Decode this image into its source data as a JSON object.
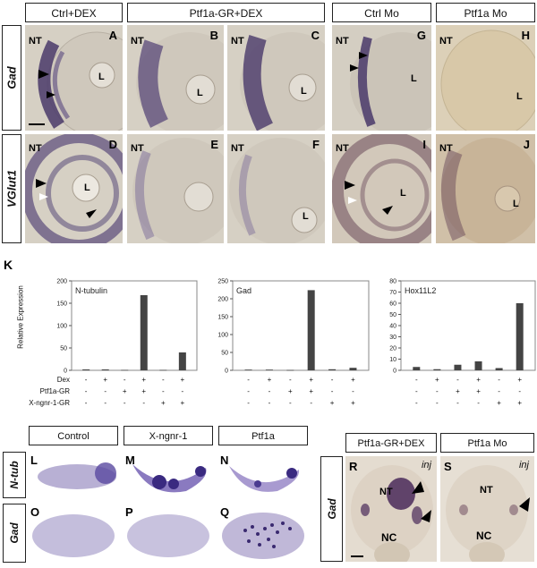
{
  "top": {
    "col_headers": [
      "Ctrl+DEX",
      "Ptf1a-GR+DEX",
      "Ctrl Mo",
      "Ptf1a  Mo"
    ],
    "row_labels": [
      "Gad",
      "VGlut1"
    ],
    "panel_letters": [
      "A",
      "B",
      "C",
      "G",
      "H",
      "D",
      "E",
      "F",
      "I",
      "J"
    ],
    "nt": "NT",
    "l": "L"
  },
  "K": {
    "letter": "K",
    "ylabel": "Relative Expression",
    "row_names": [
      "Dex",
      "Ptf1a-GR",
      "X-ngnr-1-GR"
    ],
    "signs": [
      [
        "-",
        "+",
        "-",
        "+",
        "-",
        "+"
      ],
      [
        "-",
        "-",
        "+",
        "+",
        "-",
        "-"
      ],
      [
        "-",
        "-",
        "-",
        "-",
        "+",
        "+"
      ]
    ]
  },
  "chart_data": [
    {
      "type": "bar",
      "title": "N-tubulin",
      "ylim": [
        0,
        200
      ],
      "yticks": [
        "0",
        "50",
        "100",
        "150",
        "200"
      ],
      "values": [
        2,
        2,
        1,
        168,
        1,
        40
      ],
      "bar_color": "#444444"
    },
    {
      "type": "bar",
      "title": "Gad",
      "ylim": [
        0,
        250
      ],
      "yticks": [
        "0",
        "50",
        "100",
        "150",
        "200",
        "250"
      ],
      "values": [
        2,
        2,
        1,
        224,
        3,
        7
      ],
      "bar_color": "#444444"
    },
    {
      "type": "bar",
      "title": "Hox11L2",
      "ylim": [
        0,
        80
      ],
      "yticks": [
        "0",
        "10",
        "20",
        "30",
        "40",
        "50",
        "60",
        "70",
        "80"
      ],
      "values": [
        3,
        1,
        5,
        8,
        2,
        60
      ],
      "bar_color": "#444444"
    }
  ],
  "bottom": {
    "col_headers": [
      "Control",
      "X-ngnr-1",
      "Ptf1a"
    ],
    "row_labels": [
      "N-tub",
      "Gad"
    ],
    "letters": [
      "L",
      "M",
      "N",
      "O",
      "P",
      "Q"
    ]
  },
  "right": {
    "col_headers": [
      "Ptf1a-GR+DEX",
      "Ptf1a Mo"
    ],
    "row_label": "Gad",
    "letters": [
      "R",
      "S"
    ],
    "inj": "inj",
    "nt": "NT",
    "nc": "NC"
  },
  "colors": {
    "stain": "#4a3a6a",
    "tissue": "#d8d4cc",
    "bar": "#444444"
  }
}
